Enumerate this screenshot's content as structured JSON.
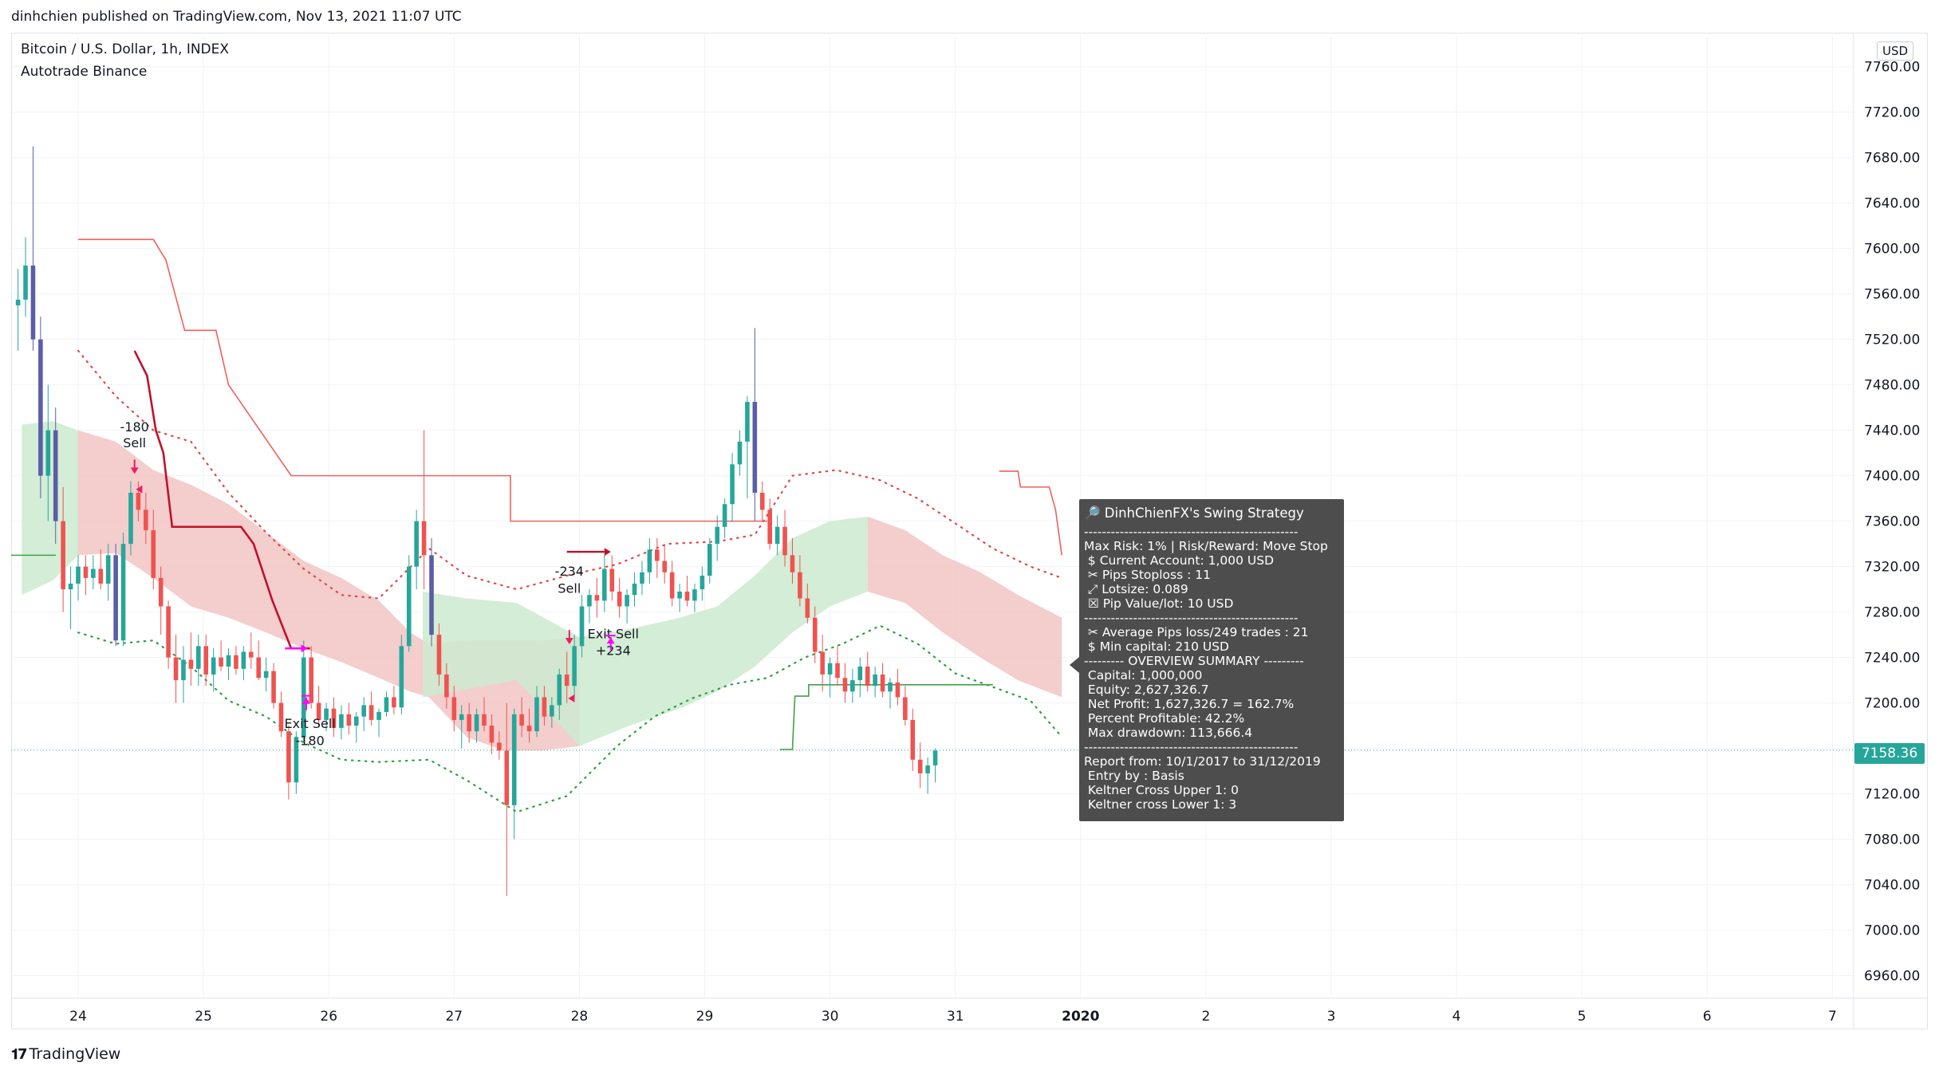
{
  "header": {
    "publisher_line": "dinhchien published on TradingView.com, Nov 13, 2021 11:07 UTC"
  },
  "chart_header": {
    "symbol": "Bitcoin / U.S. Dollar, 1h, INDEX",
    "indicator": "Autotrade Binance",
    "currency": "USD"
  },
  "footer": {
    "logo_text": "TradingView"
  },
  "colors": {
    "up_candle": "#26a69a",
    "down_candle": "#ef5350",
    "highlight_candle": "#5b5ea6",
    "ribbon_red": "#f2c4c4",
    "ribbon_green": "#cdeacf",
    "dotted_red": "#e04848",
    "dotted_green": "#2ea043",
    "stop_red": "#f0605c",
    "stop_green": "#43a047",
    "basis_line": "#c0112b",
    "signal_magenta": "#ff00ff",
    "signal_pink": "#e91e63"
  },
  "info_box": {
    "title": "🔎 DinhChienFX's Swing Strategy",
    "lines": [
      "------------------------------------------------",
      "Max Risk: 1% | Risk/Reward: Move Stop",
      " $ Current Account: 1,000 USD",
      " ✂ Pips Stoploss : 11",
      " ⤢ Lotsize: 0.089",
      " ☒ Pip Value/lot: 10 USD",
      "------------------------------------------------",
      " ✂ Average Pips loss/249 trades : 21",
      " $ Min capital: 210 USD",
      "--------- OVERVIEW SUMMARY ---------",
      " Capital: 1,000,000",
      " Equity: 2,627,326.7",
      " Net Profit: 1,627,326.7 = 162.7%",
      " Percent Profitable: 42.2%",
      " Max drawdown: 113,666.4",
      "------------------------------------------------",
      "Report from: 10/1/2017 to 31/12/2019",
      " Entry by : Basis",
      " Keltner Cross Upper 1: 0",
      " Keltner cross Lower 1: 3"
    ]
  },
  "chart_data": {
    "type": "candlestick",
    "title": "Bitcoin / U.S. Dollar, 1h, INDEX",
    "ylim": [
      6940,
      7790
    ],
    "price_ticks": [
      6960,
      7000,
      7040,
      7080,
      7120,
      7160,
      7200,
      7240,
      7280,
      7320,
      7360,
      7400,
      7440,
      7480,
      7520,
      7560,
      7600,
      7640,
      7680,
      7720,
      7760
    ],
    "x_ticks": [
      "24",
      "25",
      "26",
      "27",
      "28",
      "29",
      "30",
      "31",
      "2020",
      "2",
      "3",
      "4",
      "5",
      "6",
      "7"
    ],
    "last_price": "7158.36",
    "grid": true,
    "trade_labels": [
      {
        "text": "-180",
        "x": 24.45,
        "y": 7439
      },
      {
        "text": "Sell",
        "x": 24.45,
        "y": 7425
      },
      {
        "text": "Exit Sell",
        "x": 25.85,
        "y": 7178
      },
      {
        "text": "-180",
        "x": 25.85,
        "y": 7163
      },
      {
        "text": "-234",
        "x": 27.92,
        "y": 7312
      },
      {
        "text": "Sell",
        "x": 27.92,
        "y": 7297
      },
      {
        "text": "Exit Sell",
        "x": 28.27,
        "y": 7257
      },
      {
        "text": "+234",
        "x": 28.27,
        "y": 7242
      }
    ],
    "upper_stop": [
      [
        24.0,
        7608
      ],
      [
        24.6,
        7608
      ],
      [
        24.7,
        7590
      ],
      [
        24.85,
        7528
      ],
      [
        25.1,
        7528
      ],
      [
        25.2,
        7480
      ],
      [
        25.7,
        7400
      ],
      [
        27.45,
        7400
      ],
      [
        27.45,
        7360
      ],
      [
        29.5,
        7360
      ]
    ],
    "upper_stop_2": [
      [
        31.35,
        7404
      ],
      [
        31.5,
        7404
      ],
      [
        31.52,
        7390
      ],
      [
        31.75,
        7390
      ],
      [
        31.8,
        7370
      ],
      [
        31.85,
        7330
      ]
    ],
    "lower_stop": [
      [
        29.6,
        7159
      ],
      [
        29.7,
        7159
      ],
      [
        29.72,
        7206
      ],
      [
        29.83,
        7206
      ],
      [
        29.83,
        7216
      ],
      [
        31.3,
        7216
      ]
    ],
    "basis": [
      [
        24.45,
        7510
      ],
      [
        24.55,
        7488
      ],
      [
        24.62,
        7440
      ],
      [
        24.68,
        7420
      ],
      [
        24.75,
        7355
      ],
      [
        25.3,
        7355
      ],
      [
        25.4,
        7340
      ],
      [
        25.55,
        7290
      ],
      [
        25.7,
        7248
      ],
      [
        25.85,
        7248
      ]
    ],
    "upper_dots": [
      [
        24.0,
        7510
      ],
      [
        24.3,
        7470
      ],
      [
        24.6,
        7440
      ],
      [
        24.9,
        7430
      ],
      [
        25.2,
        7385
      ],
      [
        25.5,
        7350
      ],
      [
        25.8,
        7318
      ],
      [
        26.1,
        7295
      ],
      [
        26.4,
        7292
      ],
      [
        26.8,
        7336
      ],
      [
        27.1,
        7312
      ],
      [
        27.5,
        7300
      ],
      [
        27.9,
        7312
      ],
      [
        28.3,
        7322
      ],
      [
        28.7,
        7340
      ],
      [
        29.1,
        7342
      ],
      [
        29.4,
        7348
      ],
      [
        29.7,
        7400
      ],
      [
        30.05,
        7405
      ],
      [
        30.4,
        7396
      ],
      [
        30.7,
        7380
      ],
      [
        31.0,
        7358
      ],
      [
        31.3,
        7336
      ],
      [
        31.6,
        7320
      ],
      [
        31.85,
        7310
      ]
    ],
    "lower_dots": [
      [
        24.0,
        7262
      ],
      [
        24.3,
        7252
      ],
      [
        24.6,
        7255
      ],
      [
        24.9,
        7232
      ],
      [
        25.2,
        7202
      ],
      [
        25.5,
        7188
      ],
      [
        25.8,
        7165
      ],
      [
        26.1,
        7150
      ],
      [
        26.4,
        7148
      ],
      [
        26.8,
        7150
      ],
      [
        27.1,
        7132
      ],
      [
        27.5,
        7104
      ],
      [
        27.9,
        7118
      ],
      [
        28.3,
        7162
      ],
      [
        28.6,
        7188
      ],
      [
        28.9,
        7204
      ],
      [
        29.2,
        7216
      ],
      [
        29.5,
        7222
      ],
      [
        29.8,
        7240
      ],
      [
        30.1,
        7252
      ],
      [
        30.4,
        7268
      ],
      [
        30.7,
        7252
      ],
      [
        31.0,
        7226
      ],
      [
        31.3,
        7214
      ],
      [
        31.6,
        7202
      ],
      [
        31.85,
        7170
      ]
    ],
    "ribbon_red": [
      [
        24.0,
        7330,
        7440
      ],
      [
        24.3,
        7332,
        7430
      ],
      [
        24.6,
        7310,
        7405
      ],
      [
        24.9,
        7285,
        7392
      ],
      [
        25.2,
        7275,
        7375
      ],
      [
        25.5,
        7262,
        7350
      ],
      [
        25.8,
        7248,
        7325
      ],
      [
        26.1,
        7236,
        7310
      ],
      [
        26.4,
        7222,
        7290
      ],
      [
        26.65,
        7210,
        7262
      ],
      [
        26.8,
        7205,
        7252
      ],
      [
        27.1,
        7170,
        7255
      ],
      [
        27.4,
        7158,
        7255
      ],
      [
        27.7,
        7158,
        7255
      ],
      [
        28.0,
        7162,
        7258
      ]
    ],
    "ribbon_green_left": [
      [
        23.55,
        7295,
        7445
      ],
      [
        23.8,
        7308,
        7448
      ],
      [
        24.0,
        7330,
        7440
      ]
    ],
    "ribbon_green_mid": [
      [
        26.75,
        7205,
        7298
      ],
      [
        27.1,
        7212,
        7292
      ],
      [
        27.5,
        7220,
        7288
      ],
      [
        28.0,
        7162,
        7258
      ],
      [
        28.4,
        7180,
        7265
      ],
      [
        28.8,
        7195,
        7275
      ],
      [
        29.1,
        7210,
        7285
      ],
      [
        29.4,
        7232,
        7312
      ],
      [
        29.7,
        7262,
        7345
      ],
      [
        30.0,
        7285,
        7360
      ],
      [
        30.3,
        7298,
        7364
      ]
    ],
    "ribbon_red_right": [
      [
        30.3,
        7298,
        7364
      ],
      [
        30.6,
        7288,
        7352
      ],
      [
        30.9,
        7262,
        7330
      ],
      [
        31.2,
        7240,
        7315
      ],
      [
        31.5,
        7220,
        7295
      ],
      [
        31.85,
        7205,
        7275
      ]
    ],
    "candles": [
      [
        23.52,
        7550,
        7582,
        7510,
        7555
      ],
      [
        23.58,
        7555,
        7610,
        7540,
        7585
      ],
      [
        23.64,
        7585,
        7690,
        7510,
        7520
      ],
      [
        23.7,
        7520,
        7540,
        7380,
        7400
      ],
      [
        23.76,
        7400,
        7480,
        7360,
        7440
      ],
      [
        23.82,
        7440,
        7460,
        7340,
        7360
      ],
      [
        23.88,
        7360,
        7390,
        7280,
        7300
      ],
      [
        23.94,
        7300,
        7320,
        7265,
        7305
      ],
      [
        24.0,
        7305,
        7330,
        7290,
        7320
      ],
      [
        24.06,
        7320,
        7330,
        7295,
        7310
      ],
      [
        24.12,
        7310,
        7330,
        7300,
        7318
      ],
      [
        24.18,
        7318,
        7335,
        7300,
        7305
      ],
      [
        24.24,
        7305,
        7340,
        7290,
        7330
      ],
      [
        24.3,
        7330,
        7340,
        7250,
        7255
      ],
      [
        24.36,
        7255,
        7350,
        7250,
        7340
      ],
      [
        24.42,
        7340,
        7395,
        7330,
        7385
      ],
      [
        24.48,
        7385,
        7395,
        7360,
        7370
      ],
      [
        24.54,
        7370,
        7385,
        7340,
        7352
      ],
      [
        24.6,
        7352,
        7370,
        7300,
        7310
      ],
      [
        24.66,
        7310,
        7320,
        7260,
        7285
      ],
      [
        24.72,
        7285,
        7290,
        7230,
        7240
      ],
      [
        24.78,
        7240,
        7260,
        7200,
        7220
      ],
      [
        24.84,
        7220,
        7250,
        7200,
        7238
      ],
      [
        24.9,
        7238,
        7262,
        7215,
        7230
      ],
      [
        24.96,
        7230,
        7260,
        7215,
        7250
      ],
      [
        25.02,
        7250,
        7260,
        7215,
        7225
      ],
      [
        25.08,
        7225,
        7248,
        7210,
        7240
      ],
      [
        25.14,
        7240,
        7255,
        7228,
        7232
      ],
      [
        25.2,
        7232,
        7248,
        7220,
        7242
      ],
      [
        25.26,
        7242,
        7250,
        7225,
        7230
      ],
      [
        25.32,
        7230,
        7250,
        7220,
        7245
      ],
      [
        25.38,
        7245,
        7262,
        7230,
        7240
      ],
      [
        25.44,
        7240,
        7255,
        7220,
        7222
      ],
      [
        25.5,
        7222,
        7240,
        7210,
        7228
      ],
      [
        25.56,
        7228,
        7235,
        7195,
        7200
      ],
      [
        25.62,
        7200,
        7210,
        7170,
        7175
      ],
      [
        25.68,
        7175,
        7180,
        7115,
        7130
      ],
      [
        25.74,
        7130,
        7175,
        7120,
        7170
      ],
      [
        25.8,
        7170,
        7255,
        7165,
        7240
      ],
      [
        25.86,
        7240,
        7250,
        7195,
        7200
      ],
      [
        25.92,
        7200,
        7215,
        7180,
        7185
      ],
      [
        25.98,
        7185,
        7200,
        7175,
        7195
      ],
      [
        26.04,
        7195,
        7205,
        7170,
        7178
      ],
      [
        26.1,
        7178,
        7198,
        7168,
        7190
      ],
      [
        26.16,
        7190,
        7200,
        7172,
        7180
      ],
      [
        26.22,
        7180,
        7192,
        7165,
        7188
      ],
      [
        26.28,
        7188,
        7205,
        7175,
        7198
      ],
      [
        26.34,
        7198,
        7210,
        7180,
        7185
      ],
      [
        26.4,
        7185,
        7195,
        7170,
        7192
      ],
      [
        26.46,
        7192,
        7210,
        7188,
        7205
      ],
      [
        26.52,
        7205,
        7215,
        7190,
        7196
      ],
      [
        26.58,
        7196,
        7260,
        7190,
        7250
      ],
      [
        26.64,
        7250,
        7330,
        7245,
        7320
      ],
      [
        26.7,
        7320,
        7370,
        7300,
        7360
      ],
      [
        26.76,
        7360,
        7440,
        7300,
        7330
      ],
      [
        26.82,
        7330,
        7345,
        7250,
        7260
      ],
      [
        26.88,
        7260,
        7270,
        7215,
        7225
      ],
      [
        26.94,
        7225,
        7235,
        7195,
        7205
      ],
      [
        27.0,
        7205,
        7215,
        7175,
        7185
      ],
      [
        27.06,
        7185,
        7198,
        7160,
        7190
      ],
      [
        27.12,
        7190,
        7200,
        7165,
        7175
      ],
      [
        27.18,
        7175,
        7195,
        7165,
        7190
      ],
      [
        27.24,
        7190,
        7205,
        7175,
        7180
      ],
      [
        27.3,
        7180,
        7190,
        7155,
        7165
      ],
      [
        27.36,
        7165,
        7175,
        7150,
        7158
      ],
      [
        27.42,
        7158,
        7200,
        7030,
        7110
      ],
      [
        27.48,
        7110,
        7195,
        7080,
        7190
      ],
      [
        27.54,
        7190,
        7205,
        7170,
        7180
      ],
      [
        27.6,
        7180,
        7195,
        7165,
        7175
      ],
      [
        27.66,
        7175,
        7215,
        7170,
        7205
      ],
      [
        27.72,
        7205,
        7215,
        7180,
        7188
      ],
      [
        27.78,
        7188,
        7205,
        7178,
        7198
      ],
      [
        27.84,
        7198,
        7230,
        7185,
        7225
      ],
      [
        27.9,
        7225,
        7245,
        7200,
        7215
      ],
      [
        27.96,
        7215,
        7260,
        7205,
        7250
      ],
      [
        28.02,
        7250,
        7295,
        7240,
        7285
      ],
      [
        28.08,
        7285,
        7300,
        7270,
        7295
      ],
      [
        28.14,
        7295,
        7310,
        7275,
        7290
      ],
      [
        28.2,
        7290,
        7330,
        7280,
        7318
      ],
      [
        28.26,
        7318,
        7330,
        7290,
        7298
      ],
      [
        28.32,
        7298,
        7310,
        7275,
        7285
      ],
      [
        28.38,
        7285,
        7300,
        7270,
        7295
      ],
      [
        28.44,
        7295,
        7315,
        7285,
        7305
      ],
      [
        28.5,
        7305,
        7325,
        7295,
        7315
      ],
      [
        28.56,
        7315,
        7345,
        7305,
        7335
      ],
      [
        28.62,
        7335,
        7345,
        7310,
        7325
      ],
      [
        28.68,
        7325,
        7340,
        7305,
        7315
      ],
      [
        28.74,
        7315,
        7325,
        7285,
        7292
      ],
      [
        28.8,
        7292,
        7305,
        7280,
        7298
      ],
      [
        28.86,
        7298,
        7312,
        7285,
        7290
      ],
      [
        28.92,
        7290,
        7305,
        7280,
        7300
      ],
      [
        28.98,
        7300,
        7320,
        7290,
        7312
      ],
      [
        29.04,
        7312,
        7345,
        7305,
        7340
      ],
      [
        29.1,
        7340,
        7365,
        7325,
        7355
      ],
      [
        29.16,
        7355,
        7380,
        7345,
        7375
      ],
      [
        29.22,
        7375,
        7420,
        7360,
        7410
      ],
      [
        29.28,
        7410,
        7440,
        7400,
        7430
      ],
      [
        29.34,
        7430,
        7470,
        7380,
        7465
      ],
      [
        29.4,
        7465,
        7530,
        7360,
        7385
      ],
      [
        29.46,
        7385,
        7395,
        7360,
        7370
      ],
      [
        29.52,
        7370,
        7380,
        7335,
        7340
      ],
      [
        29.58,
        7340,
        7365,
        7330,
        7355
      ],
      [
        29.64,
        7355,
        7370,
        7320,
        7330
      ],
      [
        29.7,
        7330,
        7345,
        7305,
        7315
      ],
      [
        29.76,
        7315,
        7330,
        7285,
        7292
      ],
      [
        29.82,
        7292,
        7305,
        7270,
        7275
      ],
      [
        29.88,
        7275,
        7285,
        7235,
        7245
      ],
      [
        29.94,
        7245,
        7260,
        7210,
        7225
      ],
      [
        30.0,
        7225,
        7240,
        7205,
        7235
      ],
      [
        30.06,
        7235,
        7250,
        7215,
        7222
      ],
      [
        30.12,
        7222,
        7235,
        7200,
        7210
      ],
      [
        30.18,
        7210,
        7230,
        7200,
        7220
      ],
      [
        30.24,
        7220,
        7240,
        7205,
        7232
      ],
      [
        30.3,
        7232,
        7245,
        7210,
        7215
      ],
      [
        30.36,
        7215,
        7232,
        7205,
        7225
      ],
      [
        30.42,
        7225,
        7235,
        7205,
        7210
      ],
      [
        30.48,
        7210,
        7222,
        7195,
        7218
      ],
      [
        30.54,
        7218,
        7230,
        7198,
        7205
      ],
      [
        30.6,
        7205,
        7215,
        7180,
        7185
      ],
      [
        30.66,
        7185,
        7195,
        7140,
        7150
      ],
      [
        30.72,
        7150,
        7165,
        7125,
        7138
      ],
      [
        30.78,
        7138,
        7152,
        7120,
        7145
      ],
      [
        30.84,
        7145,
        7160,
        7130,
        7158
      ]
    ]
  }
}
